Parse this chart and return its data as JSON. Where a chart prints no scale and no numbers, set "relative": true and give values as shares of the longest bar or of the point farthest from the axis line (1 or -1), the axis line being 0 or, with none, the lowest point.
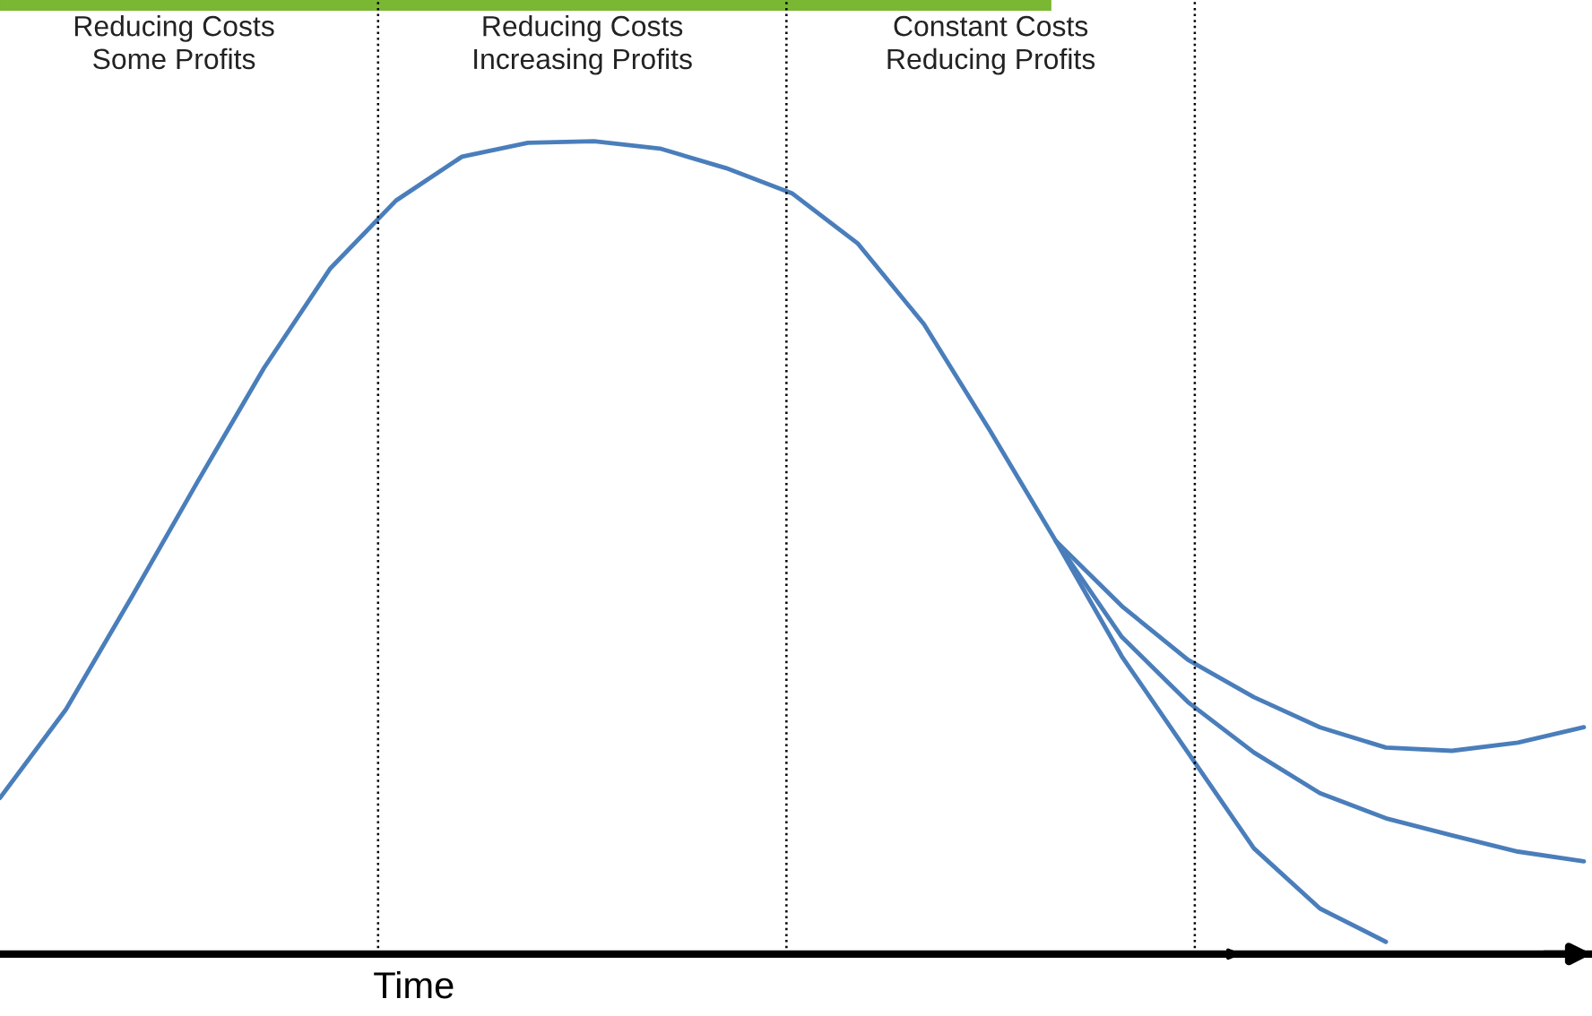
{
  "chart_data": {
    "type": "line",
    "relative": true,
    "xlabel": "Time",
    "categories": [
      null,
      null,
      null,
      null,
      null,
      null,
      null,
      null,
      null,
      null,
      null,
      null,
      null,
      null,
      null,
      null,
      null,
      null,
      null,
      null,
      null,
      null,
      null,
      null,
      null
    ],
    "series": [
      {
        "color": "#4a7ebb",
        "values": [
          0.192,
          0.301,
          0.44,
          0.582,
          0.721,
          0.843,
          0.927,
          0.981,
          0.998,
          1.0,
          0.991,
          0.967,
          0.936,
          0.874,
          0.775,
          0.644,
          0.508,
          0.428,
          0.362,
          0.316,
          0.279,
          0.254,
          0.25,
          0.26,
          0.279
        ]
      },
      {
        "color": "#4a7ebb",
        "values": [
          null,
          null,
          null,
          null,
          null,
          null,
          null,
          null,
          null,
          null,
          null,
          null,
          null,
          null,
          null,
          null,
          0.508,
          0.39,
          0.31,
          0.248,
          0.198,
          0.167,
          0.146,
          0.126,
          0.114
        ]
      },
      {
        "color": "#4a7ebb",
        "values": [
          null,
          null,
          null,
          null,
          null,
          null,
          null,
          null,
          null,
          null,
          null,
          null,
          null,
          null,
          null,
          null,
          0.508,
          0.366,
          0.248,
          0.13,
          0.056,
          0.015,
          null,
          null,
          null
        ]
      }
    ],
    "annotations": [
      "Reducing Costs\nSome Profits",
      "Reducing Costs\nIncreasing Profits",
      "Constant Costs\nReducing Profits"
    ]
  }
}
